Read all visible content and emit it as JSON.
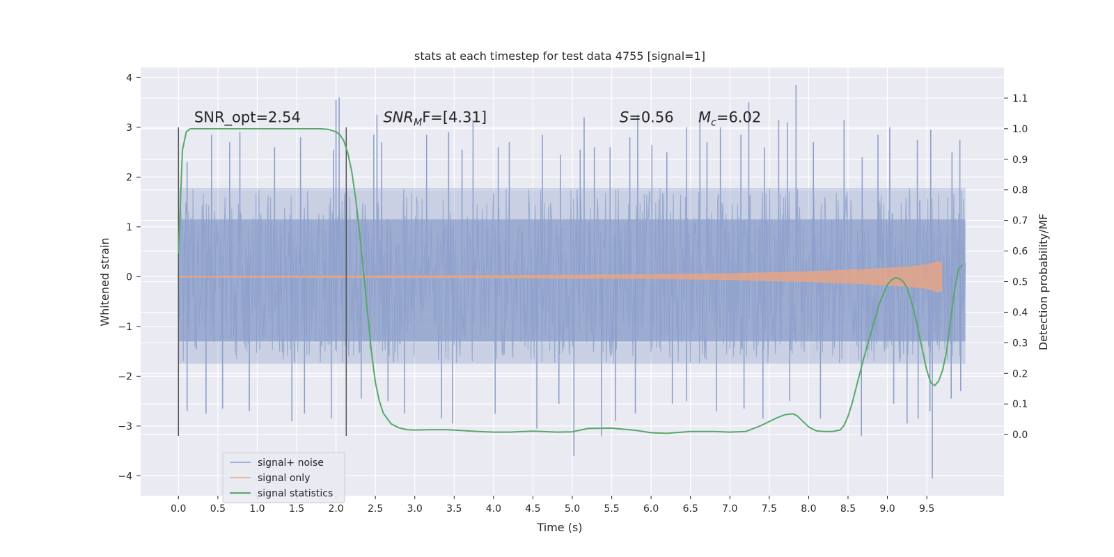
{
  "chart_data": {
    "type": "line",
    "title": "stats at each timestep for test data 4755 [signal=1]",
    "xlabel": "Time (s)",
    "ylabel": "Whitened strain",
    "y2label": "Detection probability/MF",
    "xlim": [
      -0.48,
      10.48
    ],
    "ylim": [
      -4.4,
      4.2
    ],
    "y2lim": [
      -0.2,
      1.2
    ],
    "x_ticks": [
      0.0,
      0.5,
      1.0,
      1.5,
      2.0,
      2.5,
      3.0,
      3.5,
      4.0,
      4.5,
      5.0,
      5.5,
      6.0,
      6.5,
      7.0,
      7.5,
      8.0,
      8.5,
      9.0,
      9.5
    ],
    "x_tick_labels": [
      "0.0",
      "0.5",
      "1.0",
      "1.5",
      "2.0",
      "2.5",
      "3.0",
      "3.5",
      "4.0",
      "4.5",
      "5.0",
      "5.5",
      "6.0",
      "6.5",
      "7.0",
      "7.5",
      "8.0",
      "8.5",
      "9.0",
      "9.5"
    ],
    "y_ticks": [
      -4,
      -3,
      -2,
      -1,
      0,
      1,
      2,
      3,
      4
    ],
    "y_tick_labels": [
      "−4",
      "−3",
      "−2",
      "−1",
      "0",
      "1",
      "2",
      "3",
      "4"
    ],
    "y2_ticks": [
      0.0,
      0.1,
      0.2,
      0.3,
      0.4,
      0.5,
      0.6,
      0.7,
      0.8,
      0.9,
      1.0,
      1.1
    ],
    "y2_tick_labels": [
      "0.0",
      "0.1",
      "0.2",
      "0.3",
      "0.4",
      "0.5",
      "0.6",
      "0.7",
      "0.8",
      "0.9",
      "1.0",
      "1.1"
    ],
    "grid": true,
    "legend_position": "lower-left",
    "colors": {
      "signal_noise": "#8da0cb",
      "signal_only": "#e5a486",
      "statistics": "#55a868",
      "vline": "#555555",
      "plot_bg": "#eaeaf2",
      "grid": "#ffffff"
    },
    "series": [
      {
        "name": "signal+ noise",
        "axis": "left",
        "x_range": [
          0.0,
          9.99
        ],
        "envelope_upper": 1.78,
        "envelope_lower": -1.75,
        "core_upper": 1.15,
        "core_lower": -1.3,
        "peaks": [
          [
            0.11,
            2.3
          ],
          [
            0.42,
            2.85
          ],
          [
            0.65,
            2.7
          ],
          [
            0.78,
            2.9
          ],
          [
            1.22,
            2.6
          ],
          [
            1.55,
            2.8
          ],
          [
            1.97,
            2.55
          ],
          [
            2.0,
            3.55
          ],
          [
            2.04,
            3.6
          ],
          [
            2.48,
            2.85
          ],
          [
            2.52,
            3.25
          ],
          [
            2.58,
            2.7
          ],
          [
            3.15,
            2.85
          ],
          [
            3.43,
            2.9
          ],
          [
            3.6,
            2.55
          ],
          [
            3.74,
            3.15
          ],
          [
            4.06,
            2.6
          ],
          [
            4.2,
            2.7
          ],
          [
            4.62,
            2.85
          ],
          [
            4.85,
            2.45
          ],
          [
            5.1,
            2.55
          ],
          [
            5.15,
            3.2
          ],
          [
            5.28,
            2.6
          ],
          [
            5.48,
            2.6
          ],
          [
            5.73,
            2.8
          ],
          [
            5.83,
            3.25
          ],
          [
            6.01,
            2.65
          ],
          [
            6.2,
            2.5
          ],
          [
            6.45,
            3.0
          ],
          [
            6.62,
            3.3
          ],
          [
            6.71,
            2.7
          ],
          [
            6.88,
            3.0
          ],
          [
            7.14,
            2.85
          ],
          [
            7.24,
            3.5
          ],
          [
            7.44,
            2.6
          ],
          [
            7.62,
            3.15
          ],
          [
            7.73,
            3.1
          ],
          [
            7.84,
            3.85
          ],
          [
            8.06,
            2.7
          ],
          [
            8.45,
            3.15
          ],
          [
            8.68,
            2.4
          ],
          [
            8.88,
            2.85
          ],
          [
            9.03,
            3.0
          ],
          [
            9.38,
            2.75
          ],
          [
            9.55,
            2.95
          ],
          [
            9.82,
            2.5
          ],
          [
            9.92,
            2.75
          ]
        ],
        "troughs": [
          [
            0.11,
            -2.7
          ],
          [
            0.35,
            -2.75
          ],
          [
            0.56,
            -2.65
          ],
          [
            0.9,
            -2.7
          ],
          [
            1.44,
            -2.9
          ],
          [
            1.6,
            -2.75
          ],
          [
            1.94,
            -2.85
          ],
          [
            2.32,
            -2.45
          ],
          [
            2.66,
            -2.5
          ],
          [
            2.87,
            -2.75
          ],
          [
            3.34,
            -2.85
          ],
          [
            3.48,
            -2.95
          ],
          [
            4.02,
            -2.75
          ],
          [
            4.55,
            -3.05
          ],
          [
            4.83,
            -2.55
          ],
          [
            5.02,
            -3.6
          ],
          [
            5.37,
            -3.2
          ],
          [
            5.55,
            -2.9
          ],
          [
            5.8,
            -2.75
          ],
          [
            6.27,
            -2.55
          ],
          [
            6.45,
            -2.5
          ],
          [
            6.83,
            -2.7
          ],
          [
            7.18,
            -2.65
          ],
          [
            7.42,
            -2.85
          ],
          [
            7.76,
            -2.5
          ],
          [
            8.15,
            -2.85
          ],
          [
            8.67,
            -3.2
          ],
          [
            9.08,
            -2.55
          ],
          [
            9.25,
            -2.95
          ],
          [
            9.39,
            -2.85
          ],
          [
            9.54,
            -2.7
          ],
          [
            9.57,
            -4.05
          ],
          [
            9.81,
            -2.45
          ],
          [
            9.93,
            -2.3
          ]
        ]
      },
      {
        "name": "signal only",
        "axis": "left",
        "x_range": [
          0.0,
          9.69
        ],
        "amplitude": [
          [
            0.0,
            0.01
          ],
          [
            4.0,
            0.02
          ],
          [
            6.0,
            0.04
          ],
          [
            7.0,
            0.06
          ],
          [
            8.0,
            0.1
          ],
          [
            8.5,
            0.13
          ],
          [
            9.0,
            0.17
          ],
          [
            9.3,
            0.2
          ],
          [
            9.5,
            0.24
          ],
          [
            9.6,
            0.28
          ],
          [
            9.66,
            0.32
          ],
          [
            9.69,
            0.28
          ]
        ]
      },
      {
        "name": "signal statistics",
        "axis": "right",
        "x": [
          0.0,
          0.05,
          0.1,
          0.15,
          0.25,
          0.4,
          0.6,
          0.8,
          1.0,
          1.3,
          1.6,
          1.8,
          1.9,
          2.0,
          2.05,
          2.1,
          2.15,
          2.2,
          2.25,
          2.3,
          2.35,
          2.4,
          2.45,
          2.5,
          2.55,
          2.6,
          2.7,
          2.8,
          2.9,
          3.0,
          3.2,
          3.4,
          3.6,
          3.8,
          4.0,
          4.2,
          4.5,
          4.8,
          5.0,
          5.2,
          5.5,
          5.8,
          6.0,
          6.2,
          6.5,
          6.8,
          7.0,
          7.2,
          7.4,
          7.6,
          7.7,
          7.8,
          7.85,
          7.9,
          8.0,
          8.1,
          8.2,
          8.3,
          8.4,
          8.45,
          8.5,
          8.55,
          8.6,
          8.7,
          8.8,
          8.9,
          9.0,
          9.05,
          9.1,
          9.15,
          9.2,
          9.25,
          9.3,
          9.35,
          9.4,
          9.45,
          9.5,
          9.55,
          9.6,
          9.65,
          9.7,
          9.75,
          9.8,
          9.85,
          9.9,
          9.95
        ],
        "values": [
          0.59,
          0.93,
          0.99,
          1.0,
          1.0,
          1.0,
          1.0,
          1.0,
          1.0,
          1.0,
          1.0,
          1.0,
          0.998,
          0.99,
          0.98,
          0.96,
          0.92,
          0.86,
          0.77,
          0.66,
          0.53,
          0.4,
          0.27,
          0.17,
          0.11,
          0.07,
          0.035,
          0.022,
          0.016,
          0.015,
          0.016,
          0.016,
          0.013,
          0.01,
          0.008,
          0.008,
          0.011,
          0.008,
          0.009,
          0.02,
          0.021,
          0.014,
          0.006,
          0.004,
          0.01,
          0.01,
          0.008,
          0.01,
          0.03,
          0.055,
          0.065,
          0.068,
          0.062,
          0.05,
          0.025,
          0.012,
          0.01,
          0.01,
          0.015,
          0.03,
          0.06,
          0.1,
          0.15,
          0.25,
          0.34,
          0.43,
          0.49,
          0.505,
          0.513,
          0.51,
          0.5,
          0.48,
          0.44,
          0.39,
          0.33,
          0.27,
          0.21,
          0.17,
          0.16,
          0.175,
          0.21,
          0.27,
          0.37,
          0.47,
          0.54,
          0.555
        ]
      }
    ],
    "vlines": [
      0.0,
      2.13
    ],
    "vline_ymin": -3.2,
    "vline_ymax": 3.0,
    "annotations": [
      {
        "key": "snr_opt",
        "text": "SNR_opt=2.54",
        "x": 0.2,
        "y": 3.1
      },
      {
        "key": "snr_mf",
        "prefix": "SNR",
        "sub": "M",
        "rest": "F=[4.31]",
        "x": 2.6,
        "y": 3.1
      },
      {
        "key": "s",
        "italic": "S",
        "rest": "=0.56",
        "x": 5.6,
        "y": 3.1
      },
      {
        "key": "mc",
        "italic": "M",
        "sub": "c",
        "rest": "=6.02",
        "x": 6.6,
        "y": 3.1
      }
    ]
  }
}
